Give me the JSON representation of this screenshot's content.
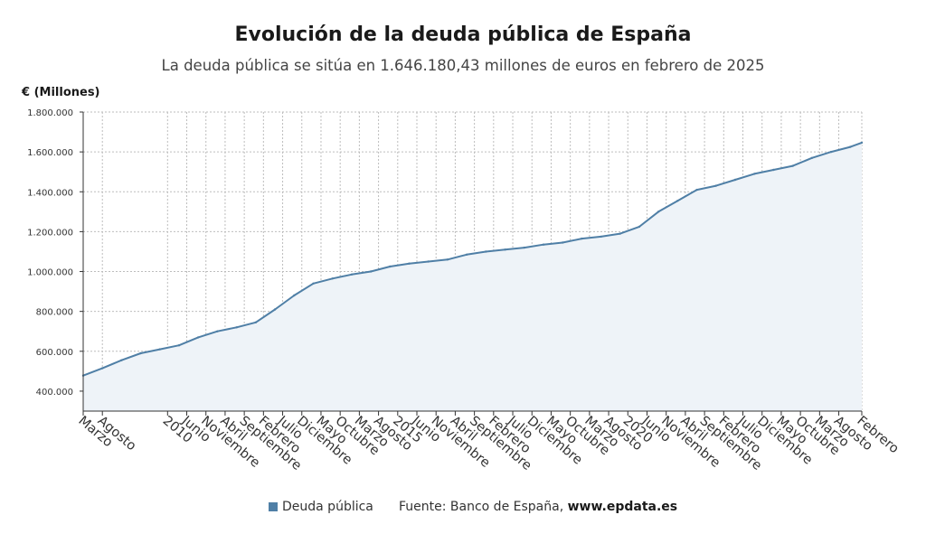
{
  "title": "Evolución de la deuda pública de España",
  "subtitle": "La deuda pública se sitúa en 1.646.180,43 millones de euros en febrero de 2025",
  "footer": {
    "source_prefix": "Fuente: Banco de España,",
    "source_site": "www.epdata.es"
  },
  "colors": {
    "line": "#4f7fa6",
    "area": "#eef3f8",
    "grid": "#bdbdbd",
    "axis": "#333333"
  },
  "chart_data": {
    "type": "area",
    "ylabel": "€ (Millones)",
    "ylim": [
      300000,
      1800000
    ],
    "y_ticks": [
      "400.000",
      "600.000",
      "800.000",
      "1.000.000",
      "1.200.000",
      "1.400.000",
      "1.600.000",
      "1.800.000"
    ],
    "y_tick_values": [
      400000,
      600000,
      800000,
      1000000,
      1200000,
      1400000,
      1600000,
      1800000
    ],
    "x_range": [
      "2008-03",
      "2025-02"
    ],
    "x_ticks": [
      "Marzo",
      "Agosto",
      "2010",
      "Junio",
      "Noviembre",
      "Abril",
      "Septiembre",
      "Febrero",
      "Julio",
      "Diciembre",
      "Mayo",
      "Octubre",
      "Marzo",
      "Agosto",
      "2015",
      "Junio",
      "Noviembre",
      "Abril",
      "Septiembre",
      "Febrero",
      "Julio",
      "Diciembre",
      "Mayo",
      "Octubre",
      "Marzo",
      "Agosto",
      "2020",
      "Junio",
      "Noviembre",
      "Abril",
      "Septiembre",
      "Febrero",
      "Julio",
      "Diciembre",
      "Mayo",
      "Octubre",
      "Marzo",
      "Agosto",
      "Febrero"
    ],
    "x_tick_dates": [
      "2008-03",
      "2008-08",
      "2010-01",
      "2010-06",
      "2010-11",
      "2011-04",
      "2011-09",
      "2012-02",
      "2012-07",
      "2012-12",
      "2013-05",
      "2013-10",
      "2014-03",
      "2014-08",
      "2015-01",
      "2015-06",
      "2015-11",
      "2016-04",
      "2016-09",
      "2017-02",
      "2017-07",
      "2017-12",
      "2018-05",
      "2018-10",
      "2019-03",
      "2019-08",
      "2020-01",
      "2020-06",
      "2020-11",
      "2021-04",
      "2021-09",
      "2022-02",
      "2022-07",
      "2022-12",
      "2023-05",
      "2023-10",
      "2024-03",
      "2024-08",
      "2025-02"
    ],
    "grid": true,
    "legend_position": "bottom",
    "series": [
      {
        "name": "Deuda pública",
        "dates": [
          "2008-03",
          "2008-08",
          "2009-01",
          "2009-06",
          "2009-11",
          "2010-04",
          "2010-09",
          "2011-02",
          "2011-07",
          "2011-12",
          "2012-05",
          "2012-10",
          "2013-03",
          "2013-08",
          "2014-01",
          "2014-06",
          "2014-11",
          "2015-04",
          "2015-09",
          "2016-02",
          "2016-07",
          "2016-12",
          "2017-05",
          "2017-10",
          "2018-03",
          "2018-08",
          "2019-01",
          "2019-06",
          "2019-11",
          "2020-04",
          "2020-09",
          "2021-02",
          "2021-07",
          "2021-12",
          "2022-05",
          "2022-10",
          "2023-03",
          "2023-08",
          "2024-01",
          "2024-06",
          "2024-11",
          "2025-02"
        ],
        "values": [
          478000,
          515000,
          555000,
          590000,
          610000,
          630000,
          670000,
          700000,
          720000,
          745000,
          810000,
          880000,
          940000,
          965000,
          985000,
          1000000,
          1025000,
          1040000,
          1050000,
          1060000,
          1085000,
          1100000,
          1110000,
          1120000,
          1135000,
          1145000,
          1165000,
          1175000,
          1190000,
          1225000,
          1300000,
          1355000,
          1410000,
          1430000,
          1460000,
          1490000,
          1510000,
          1530000,
          1570000,
          1600000,
          1625000,
          1646180
        ]
      }
    ]
  }
}
